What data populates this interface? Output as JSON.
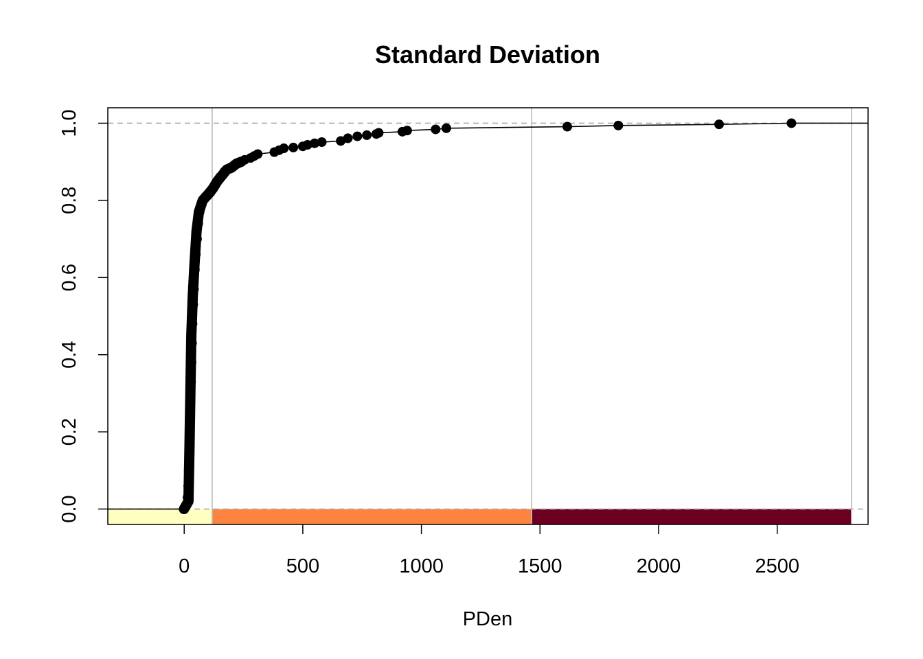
{
  "chart_data": {
    "type": "scatter",
    "title": "Standard Deviation",
    "xlabel": "PDen",
    "ylabel": "",
    "xlim": [
      -322,
      2883
    ],
    "ylim": [
      -0.04,
      1.04
    ],
    "x_ticks": [
      0,
      500,
      1000,
      1500,
      2000,
      2500
    ],
    "y_ticks": [
      0.0,
      0.2,
      0.4,
      0.6,
      0.8,
      1.0
    ],
    "x_tick_labels": [
      "0",
      "500",
      "1000",
      "1500",
      "2000",
      "2500"
    ],
    "y_tick_labels": [
      "0.0",
      "0.2",
      "0.4",
      "0.6",
      "0.8",
      "1.0"
    ],
    "reference_lines_y": [
      0.0,
      1.0
    ],
    "vertical_lines_x": [
      118,
      1465,
      2813
    ],
    "class_bands": [
      {
        "from": -322,
        "to": 118,
        "color": "#FFFFC0"
      },
      {
        "from": 118,
        "to": 1465,
        "color": "#FC8440"
      },
      {
        "from": 1465,
        "to": 2813,
        "color": "#6B0020"
      }
    ],
    "grid": false,
    "legend": "none",
    "series": [
      {
        "values_dense": [
          [
            -0.9,
            0.0
          ],
          [
            18,
            0.02
          ],
          [
            22,
            0.15
          ],
          [
            26,
            0.3
          ],
          [
            30,
            0.45
          ],
          [
            36,
            0.55
          ],
          [
            43,
            0.63
          ],
          [
            52,
            0.72
          ],
          [
            62,
            0.77
          ],
          [
            78,
            0.8
          ],
          [
            100,
            0.815
          ],
          [
            120,
            0.83
          ],
          [
            140,
            0.85
          ],
          [
            160,
            0.865
          ],
          [
            180,
            0.88
          ],
          [
            200,
            0.885
          ],
          [
            220,
            0.895
          ],
          [
            240,
            0.9
          ]
        ],
        "points": [
          [
            0,
            0.0
          ],
          [
            5,
            0.005
          ],
          [
            10,
            0.01
          ],
          [
            14,
            0.03
          ],
          [
            17,
            0.06
          ],
          [
            19,
            0.1
          ],
          [
            21,
            0.14
          ],
          [
            23,
            0.18
          ],
          [
            25,
            0.23
          ],
          [
            27,
            0.28
          ],
          [
            29,
            0.33
          ],
          [
            31,
            0.38
          ],
          [
            33,
            0.43
          ],
          [
            35,
            0.48
          ],
          [
            38,
            0.53
          ],
          [
            41,
            0.57
          ],
          [
            45,
            0.62
          ],
          [
            49,
            0.66
          ],
          [
            54,
            0.7
          ],
          [
            59,
            0.74
          ],
          [
            65,
            0.77
          ],
          [
            72,
            0.79
          ],
          [
            80,
            0.8
          ],
          [
            90,
            0.81
          ],
          [
            100,
            0.815
          ],
          [
            110,
            0.82
          ],
          [
            120,
            0.83
          ],
          [
            130,
            0.84
          ],
          [
            140,
            0.85
          ],
          [
            150,
            0.86
          ],
          [
            160,
            0.865
          ],
          [
            170,
            0.875
          ],
          [
            180,
            0.88
          ],
          [
            195,
            0.885
          ],
          [
            210,
            0.89
          ],
          [
            225,
            0.895
          ],
          [
            240,
            0.9
          ],
          [
            255,
            0.905
          ],
          [
            280,
            0.91
          ],
          [
            295,
            0.915
          ],
          [
            310,
            0.92
          ],
          [
            380,
            0.925
          ],
          [
            400,
            0.93
          ],
          [
            420,
            0.935
          ],
          [
            460,
            0.937
          ],
          [
            500,
            0.94
          ],
          [
            520,
            0.944
          ],
          [
            550,
            0.948
          ],
          [
            580,
            0.951
          ],
          [
            660,
            0.954
          ],
          [
            690,
            0.961
          ],
          [
            730,
            0.966
          ],
          [
            770,
            0.969
          ],
          [
            810,
            0.972
          ],
          [
            820,
            0.975
          ],
          [
            920,
            0.978
          ],
          [
            940,
            0.981
          ],
          [
            1060,
            0.984
          ],
          [
            1105,
            0.987
          ],
          [
            1615,
            0.991
          ],
          [
            1830,
            0.994
          ],
          [
            2255,
            0.997
          ],
          [
            2560,
            1.0
          ]
        ],
        "color": "#000000"
      }
    ]
  }
}
